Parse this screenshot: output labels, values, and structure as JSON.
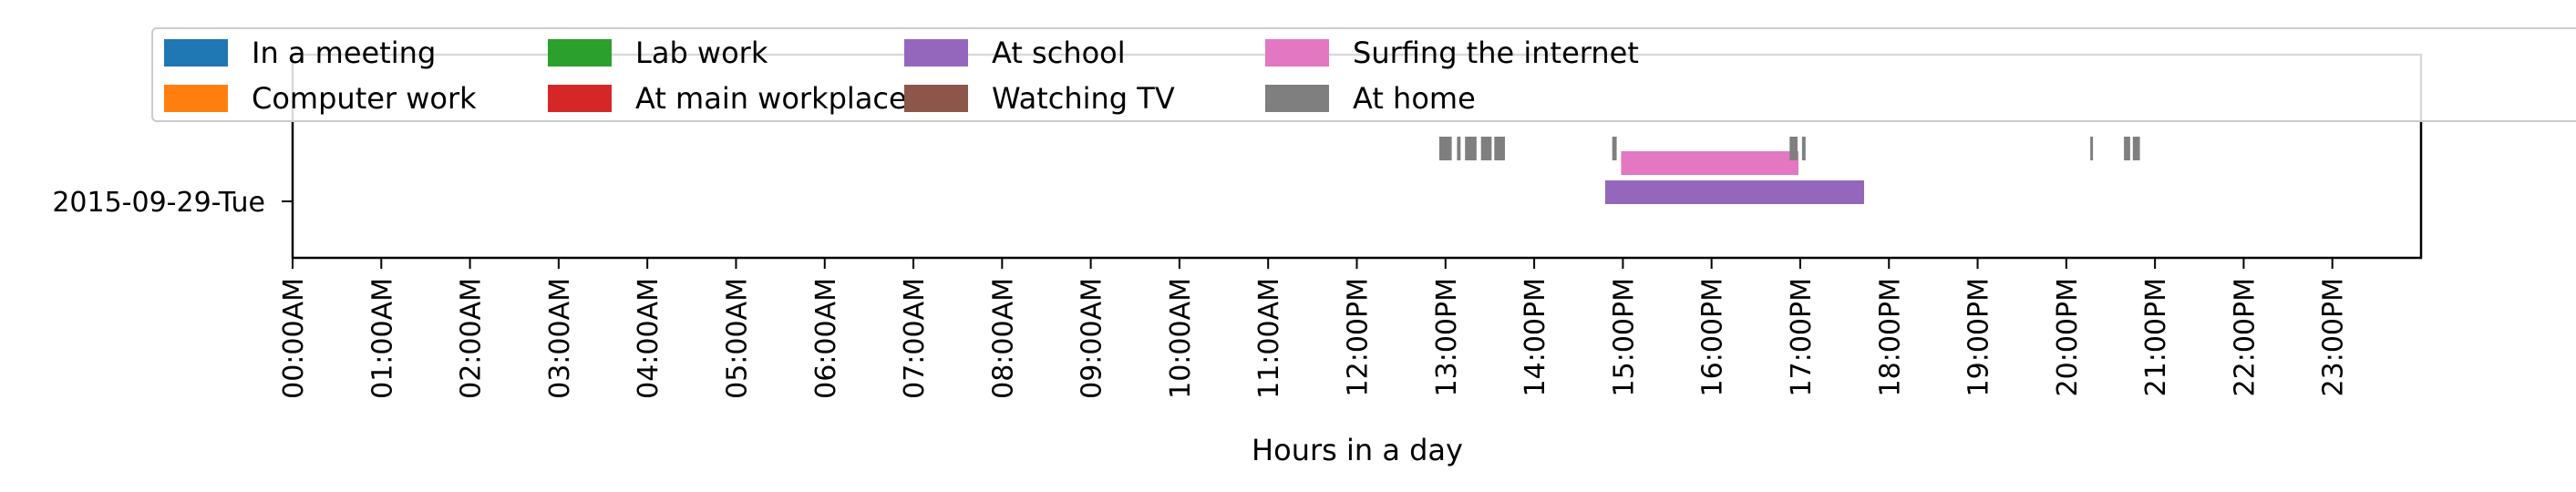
{
  "chart_data": {
    "type": "timeline",
    "xlabel": "Hours in a day",
    "x_ticks": [
      "00:00AM",
      "01:00AM",
      "02:00AM",
      "03:00AM",
      "04:00AM",
      "05:00AM",
      "06:00AM",
      "07:00AM",
      "08:00AM",
      "09:00AM",
      "10:00AM",
      "11:00AM",
      "12:00PM",
      "13:00PM",
      "14:00PM",
      "15:00PM",
      "16:00PM",
      "17:00PM",
      "18:00PM",
      "19:00PM",
      "20:00PM",
      "21:00PM",
      "22:00PM",
      "23:00PM"
    ],
    "xlim": [
      0,
      24
    ],
    "row_label": "2015-09-29-Tue",
    "legend": [
      {
        "name": "In a meeting",
        "color": "#1f77b4"
      },
      {
        "name": "Computer work",
        "color": "#ff7f0e"
      },
      {
        "name": "Lab work",
        "color": "#2ca02c"
      },
      {
        "name": "At main workplace",
        "color": "#d62728"
      },
      {
        "name": "At school",
        "color": "#9467bd"
      },
      {
        "name": "Watching TV",
        "color": "#8c564b"
      },
      {
        "name": "Surfing the internet",
        "color": "#e377c2"
      },
      {
        "name": "At home",
        "color": "#7f7f7f"
      }
    ],
    "series": [
      {
        "name": "At school",
        "color": "#9467bd",
        "lane": 0,
        "intervals": [
          [
            14.8,
            17.72
          ]
        ]
      },
      {
        "name": "Surfing the internet",
        "color": "#e377c2",
        "lane": 1,
        "intervals": [
          [
            14.98,
            16.98
          ]
        ]
      },
      {
        "name": "At home",
        "color": "#7f7f7f",
        "lane": 2,
        "intervals": [
          [
            12.93,
            13.07
          ],
          [
            13.13,
            13.17
          ],
          [
            13.22,
            13.35
          ],
          [
            13.4,
            13.52
          ],
          [
            13.55,
            13.67
          ],
          [
            14.88,
            14.93
          ],
          [
            16.88,
            16.97
          ],
          [
            17.02,
            17.06
          ],
          [
            20.27,
            20.3
          ],
          [
            20.65,
            20.72
          ],
          [
            20.75,
            20.83
          ]
        ]
      }
    ]
  }
}
